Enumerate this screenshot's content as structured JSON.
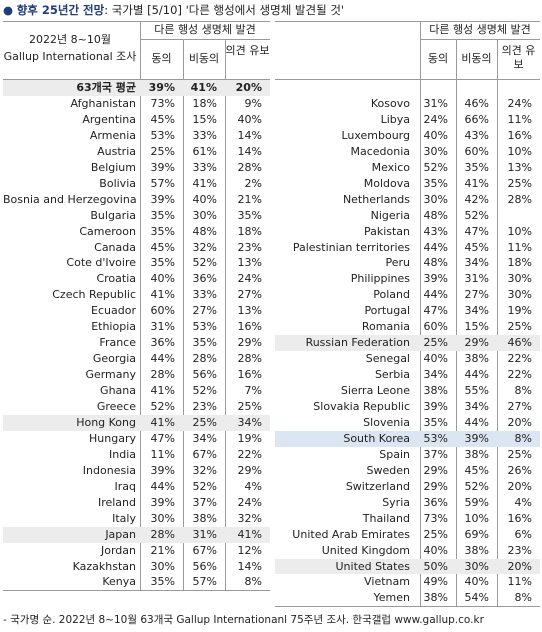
{
  "title_bold": "향후 25년간 전망",
  "title_rest": ": 국가별 [5/10] '다른 행성에서 생명체 발견될 것'",
  "left": {
    "header": {
      "period": "2022년 8~10월",
      "survey": "Gallup International 조사",
      "group": "다른 행성 생명체 발견",
      "columns": [
        "동의",
        "비동의",
        "의견 유보"
      ]
    },
    "rows": [
      {
        "name": "63개국 평균",
        "values": [
          "39%",
          "41%",
          "20%"
        ],
        "shade": "#ececec",
        "bold": true
      },
      {
        "name": "Afghanistan",
        "values": [
          "73%",
          "18%",
          "9%"
        ]
      },
      {
        "name": "Argentina",
        "values": [
          "45%",
          "15%",
          "40%"
        ]
      },
      {
        "name": "Armenia",
        "values": [
          "53%",
          "33%",
          "14%"
        ]
      },
      {
        "name": "Austria",
        "values": [
          "25%",
          "61%",
          "14%"
        ]
      },
      {
        "name": "Belgium",
        "values": [
          "39%",
          "33%",
          "28%"
        ]
      },
      {
        "name": "Bolivia",
        "values": [
          "57%",
          "41%",
          "2%"
        ]
      },
      {
        "name": "Bosnia and Herzegovina",
        "values": [
          "39%",
          "40%",
          "21%"
        ]
      },
      {
        "name": "Bulgaria",
        "values": [
          "35%",
          "30%",
          "35%"
        ]
      },
      {
        "name": "Cameroon",
        "values": [
          "35%",
          "48%",
          "18%"
        ]
      },
      {
        "name": "Canada",
        "values": [
          "45%",
          "32%",
          "23%"
        ]
      },
      {
        "name": "Cote d'Ivoire",
        "values": [
          "35%",
          "52%",
          "13%"
        ]
      },
      {
        "name": "Croatia",
        "values": [
          "40%",
          "36%",
          "24%"
        ]
      },
      {
        "name": "Czech Republic",
        "values": [
          "41%",
          "33%",
          "27%"
        ]
      },
      {
        "name": "Ecuador",
        "values": [
          "60%",
          "27%",
          "13%"
        ]
      },
      {
        "name": "Ethiopia",
        "values": [
          "31%",
          "53%",
          "16%"
        ]
      },
      {
        "name": "France",
        "values": [
          "36%",
          "35%",
          "29%"
        ]
      },
      {
        "name": "Georgia",
        "values": [
          "44%",
          "28%",
          "28%"
        ]
      },
      {
        "name": "Germany",
        "values": [
          "28%",
          "56%",
          "16%"
        ]
      },
      {
        "name": "Ghana",
        "values": [
          "41%",
          "52%",
          "7%"
        ]
      },
      {
        "name": "Greece",
        "values": [
          "52%",
          "23%",
          "25%"
        ]
      },
      {
        "name": "Hong Kong",
        "values": [
          "41%",
          "25%",
          "34%"
        ],
        "shade": "#ececec"
      },
      {
        "name": "Hungary",
        "values": [
          "47%",
          "34%",
          "19%"
        ]
      },
      {
        "name": "India",
        "values": [
          "11%",
          "67%",
          "22%"
        ]
      },
      {
        "name": "Indonesia",
        "values": [
          "39%",
          "32%",
          "29%"
        ]
      },
      {
        "name": "Iraq",
        "values": [
          "44%",
          "52%",
          "4%"
        ]
      },
      {
        "name": "Ireland",
        "values": [
          "39%",
          "37%",
          "24%"
        ]
      },
      {
        "name": "Italy",
        "values": [
          "30%",
          "38%",
          "32%"
        ]
      },
      {
        "name": "Japan",
        "values": [
          "28%",
          "31%",
          "41%"
        ],
        "shade": "#ececec"
      },
      {
        "name": "Jordan",
        "values": [
          "21%",
          "67%",
          "12%"
        ]
      },
      {
        "name": "Kazakhstan",
        "values": [
          "30%",
          "56%",
          "14%"
        ]
      },
      {
        "name": "Kenya",
        "values": [
          "35%",
          "57%",
          "8%"
        ]
      }
    ]
  },
  "right": {
    "header": {
      "group": "다른 행성 생명체 발견",
      "columns": [
        "동의",
        "비동의",
        "의견 유보"
      ]
    },
    "rows": [
      {
        "name": "Kosovo",
        "values": [
          "31%",
          "46%",
          "24%"
        ]
      },
      {
        "name": "Libya",
        "values": [
          "24%",
          "66%",
          "11%"
        ]
      },
      {
        "name": "Luxembourg",
        "values": [
          "40%",
          "43%",
          "16%"
        ]
      },
      {
        "name": "Macedonia",
        "values": [
          "30%",
          "60%",
          "10%"
        ]
      },
      {
        "name": "Mexico",
        "values": [
          "52%",
          "35%",
          "13%"
        ]
      },
      {
        "name": "Moldova",
        "values": [
          "35%",
          "41%",
          "25%"
        ]
      },
      {
        "name": "Netherlands",
        "values": [
          "30%",
          "42%",
          "28%"
        ]
      },
      {
        "name": "Nigeria",
        "values": [
          "48%",
          "52%",
          null
        ]
      },
      {
        "name": "Pakistan",
        "values": [
          "43%",
          "47%",
          "10%"
        ]
      },
      {
        "name": "Palestinian territories",
        "values": [
          "44%",
          "45%",
          "11%"
        ]
      },
      {
        "name": "Peru",
        "values": [
          "48%",
          "34%",
          "18%"
        ]
      },
      {
        "name": "Philippines",
        "values": [
          "39%",
          "31%",
          "30%"
        ]
      },
      {
        "name": "Poland",
        "values": [
          "44%",
          "27%",
          "30%"
        ]
      },
      {
        "name": "Portugal",
        "values": [
          "47%",
          "34%",
          "19%"
        ]
      },
      {
        "name": "Romania",
        "values": [
          "60%",
          "15%",
          "25%"
        ]
      },
      {
        "name": "Russian Federation",
        "values": [
          "25%",
          "29%",
          "46%"
        ],
        "shade": "#ececec"
      },
      {
        "name": "Senegal",
        "values": [
          "40%",
          "38%",
          "22%"
        ]
      },
      {
        "name": "Serbia",
        "values": [
          "34%",
          "44%",
          "22%"
        ]
      },
      {
        "name": "Sierra Leone",
        "values": [
          "38%",
          "55%",
          "8%"
        ]
      },
      {
        "name": "Slovakia Republic",
        "values": [
          "39%",
          "34%",
          "27%"
        ]
      },
      {
        "name": "Slovenia",
        "values": [
          "35%",
          "44%",
          "20%"
        ]
      },
      {
        "name": "South Korea",
        "values": [
          "53%",
          "39%",
          "8%"
        ],
        "shade": "#dce6f2"
      },
      {
        "name": "Spain",
        "values": [
          "37%",
          "38%",
          "25%"
        ]
      },
      {
        "name": "Sweden",
        "values": [
          "29%",
          "45%",
          "26%"
        ]
      },
      {
        "name": "Switzerland",
        "values": [
          "29%",
          "52%",
          "20%"
        ]
      },
      {
        "name": "Syria",
        "values": [
          "36%",
          "59%",
          "4%"
        ]
      },
      {
        "name": "Thailand",
        "values": [
          "73%",
          "10%",
          "16%"
        ]
      },
      {
        "name": "United Arab Emirates",
        "values": [
          "25%",
          "69%",
          "6%"
        ]
      },
      {
        "name": "United Kingdom",
        "values": [
          "40%",
          "38%",
          "23%"
        ]
      },
      {
        "name": "United States",
        "values": [
          "50%",
          "30%",
          "20%"
        ],
        "shade": "#ececec"
      },
      {
        "name": "Vietnam",
        "values": [
          "49%",
          "40%",
          "11%"
        ]
      },
      {
        "name": "Yemen",
        "values": [
          "38%",
          "54%",
          "8%"
        ]
      }
    ]
  },
  "footnote": "- 국가명 순. 2022년 8~10월 63개국 Gallup Internationanl 75주년 조사. 한국갤럽 www.gallup.co.kr"
}
